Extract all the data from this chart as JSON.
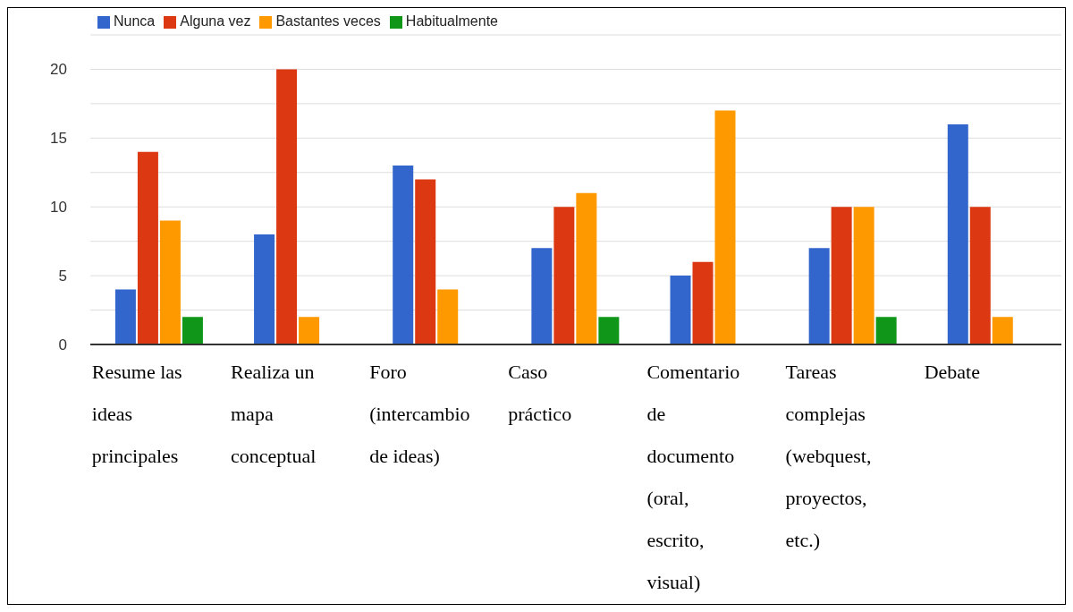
{
  "chart_data": {
    "type": "bar",
    "categories": [
      "Resume las ideas principales",
      "Realiza un mapa conceptual",
      "Foro (intercambio de ideas)",
      "Caso práctico",
      "Comentario de documento (oral, escrito, visual)",
      "Tareas complejas (webquest, proyectos, etc.)",
      "Debate"
    ],
    "series": [
      {
        "name": "Nunca",
        "color": "#3366cc",
        "values": [
          4,
          8,
          13,
          7,
          5,
          7,
          16
        ]
      },
      {
        "name": "Alguna vez",
        "color": "#dc3912",
        "values": [
          14,
          20,
          12,
          10,
          6,
          10,
          10
        ]
      },
      {
        "name": "Bastantes veces",
        "color": "#ff9900",
        "values": [
          9,
          2,
          4,
          11,
          17,
          10,
          2
        ]
      },
      {
        "name": "Habitualmente",
        "color": "#109618",
        "values": [
          2,
          0,
          0,
          2,
          0,
          2,
          0
        ]
      }
    ],
    "ylim": [
      0,
      22.5
    ],
    "yticks": [
      0,
      {
        "value": 2.5,
        "label": null
      },
      5,
      {
        "value": 7.5,
        "label": null
      },
      10,
      {
        "value": 12.5,
        "label": null
      },
      15,
      {
        "value": 17.5,
        "label": null
      },
      20,
      {
        "value": 22.5,
        "label": null
      }
    ],
    "grid": "y",
    "legend": "top left"
  }
}
